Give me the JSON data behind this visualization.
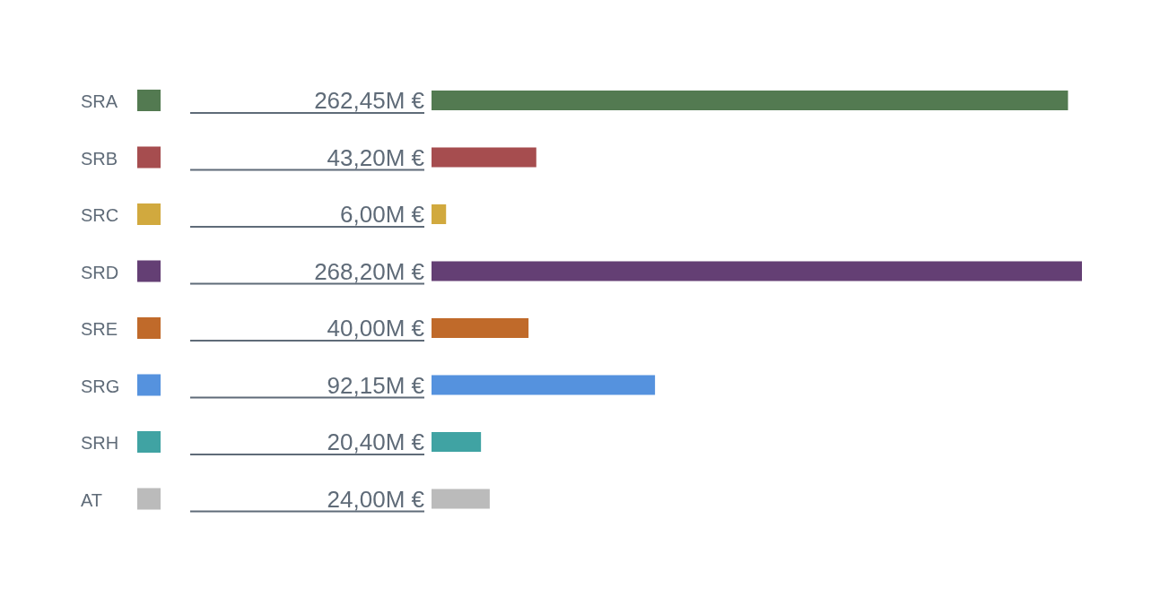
{
  "chart_data": {
    "type": "bar",
    "orientation": "horizontal",
    "categories": [
      "SRA",
      "SRB",
      "SRC",
      "SRD",
      "SRE",
      "SRG",
      "SRH",
      "AT"
    ],
    "values": [
      262.45,
      43.2,
      6.0,
      268.2,
      40.0,
      92.15,
      20.4,
      24.0
    ],
    "value_labels": [
      "262,45M €",
      "43,20M €",
      "6,00M €",
      "268,20M €",
      "40,00M €",
      "92,15M €",
      "20,40M €",
      "24,00M €"
    ],
    "colors": [
      "#537a51",
      "#a64d4f",
      "#d1a93e",
      "#643f74",
      "#c06a2a",
      "#5592de",
      "#40a3a3",
      "#bbbbbb"
    ],
    "data_labels": false
  }
}
